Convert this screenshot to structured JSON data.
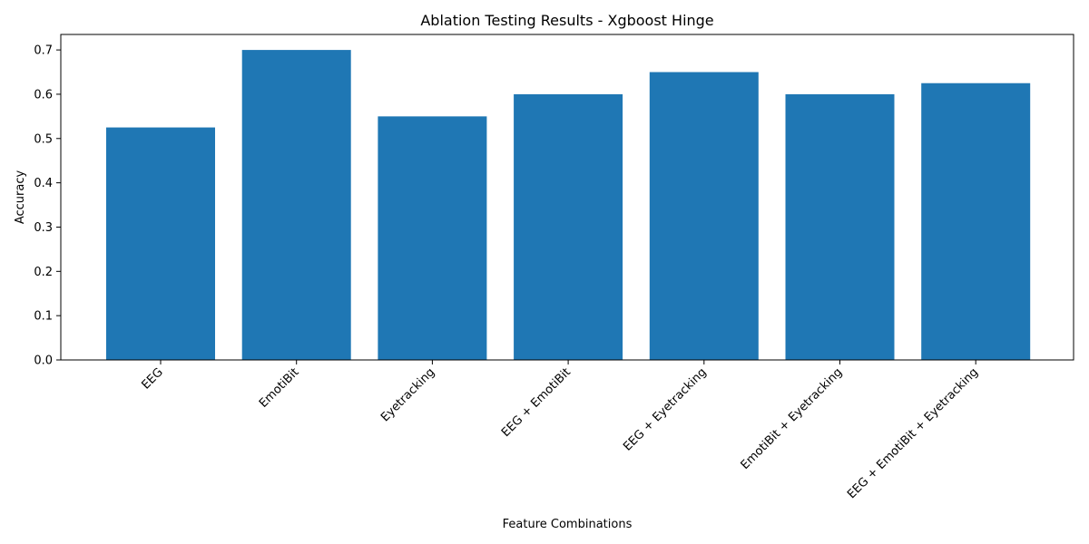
{
  "chart_data": {
    "type": "bar",
    "title": "Ablation Testing Results - Xgboost Hinge",
    "xlabel": "Feature Combinations",
    "ylabel": "Accuracy",
    "categories": [
      "EEG",
      "EmotiBit",
      "Eyetracking",
      "EEG + EmotiBit",
      "EEG + Eyetracking",
      "EmotiBit + Eyetracking",
      "EEG + EmotiBit + Eyetracking"
    ],
    "values": [
      0.525,
      0.7,
      0.55,
      0.6,
      0.65,
      0.6,
      0.625
    ],
    "yticks": [
      "0.0",
      "0.1",
      "0.2",
      "0.3",
      "0.4",
      "0.5",
      "0.6",
      "0.7"
    ],
    "ylim": [
      0,
      0.735
    ],
    "grid": false,
    "bar_color": "#1f77b4"
  }
}
